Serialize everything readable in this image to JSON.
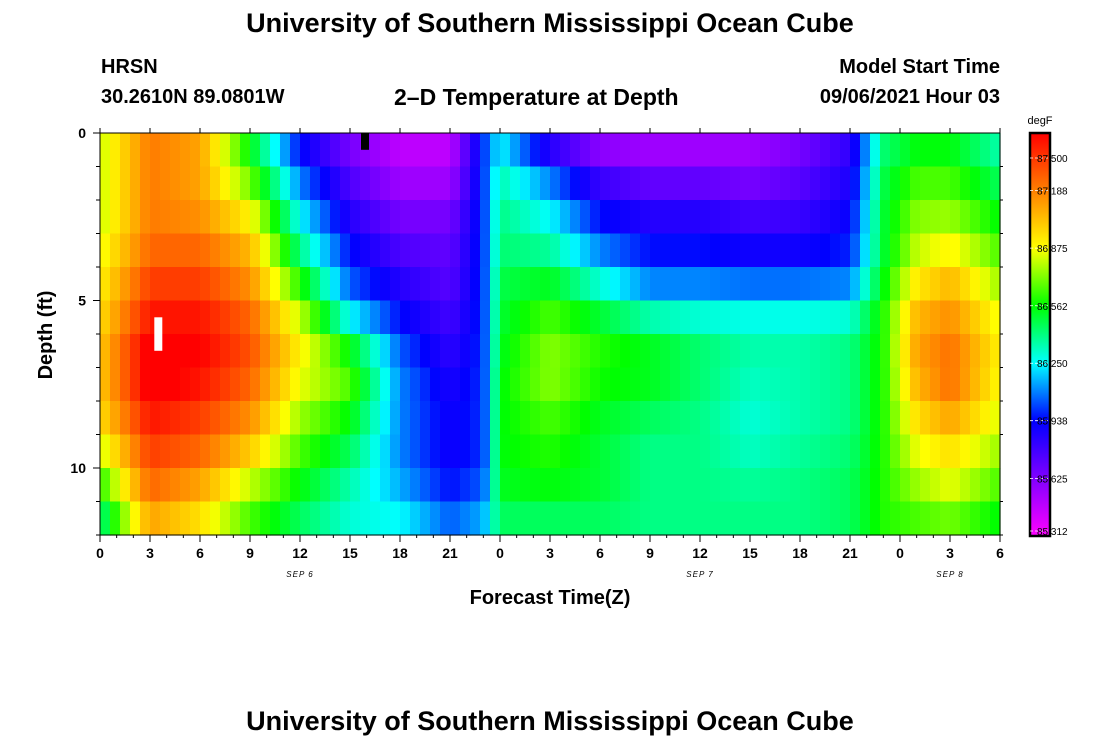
{
  "header": {
    "title": "University of Southern Mississippi Ocean Cube",
    "station": "HRSN",
    "coords": "30.2610N  89.0801W",
    "subtitle": "2–D Temperature at Depth",
    "model_start_label": "Model Start Time",
    "model_start_value": "09/06/2021 Hour 03"
  },
  "footer": {
    "title": "University of Southern Mississippi Ocean Cube"
  },
  "chart_data": {
    "type": "heatmap",
    "xlabel": "Forecast Time(Z)",
    "ylabel": "Depth (ft)",
    "x_ticks": [
      "0",
      "3",
      "6",
      "9",
      "12",
      "15",
      "18",
      "21",
      "0",
      "3",
      "6",
      "9",
      "12",
      "15",
      "18",
      "21",
      "0",
      "3",
      "6"
    ],
    "x_hours": [
      0,
      3,
      6,
      9,
      12,
      15,
      18,
      21,
      24,
      27,
      30,
      33,
      36,
      39,
      42,
      45,
      48,
      51,
      54
    ],
    "day_labels": [
      {
        "text": "SEP 6",
        "hour": 12
      },
      {
        "text": "SEP 7",
        "hour": 36
      },
      {
        "text": "SEP 8",
        "hour": 51
      }
    ],
    "y_ticks": [
      0,
      5,
      10
    ],
    "ylim": [
      0,
      12
    ],
    "xlim": [
      0,
      54
    ],
    "colorbar": {
      "unit": "degF",
      "min": 85.312,
      "max": 87.5,
      "ticks": [
        "87.500",
        "87.188",
        "86.875",
        "86.562",
        "86.250",
        "85.938",
        "85.625",
        "85.312"
      ],
      "colors": [
        "#ff00ff",
        "#8000ff",
        "#0000ff",
        "#00ffff",
        "#00ff00",
        "#ffff00",
        "#ff8000",
        "#ff0000"
      ]
    },
    "depth_levels_ft": [
      0,
      1,
      2,
      3,
      4,
      5,
      6,
      7,
      8,
      9,
      10,
      11,
      12
    ],
    "profiles": [
      {
        "hour": 0,
        "values": [
          86.8,
          86.8,
          86.8,
          86.8,
          86.9,
          86.9,
          87.0,
          87.0,
          87.0,
          86.9,
          86.7,
          86.5,
          86.3
        ]
      },
      {
        "hour": 3,
        "values": [
          87.2,
          87.2,
          87.2,
          87.2,
          87.3,
          87.4,
          87.5,
          87.6,
          87.5,
          87.4,
          87.3,
          87.2,
          87.0
        ]
      },
      {
        "hour": 6,
        "values": [
          87.1,
          87.1,
          87.1,
          87.2,
          87.3,
          87.4,
          87.5,
          87.5,
          87.4,
          87.3,
          87.2,
          87.0,
          86.9
        ]
      },
      {
        "hour": 9,
        "values": [
          86.5,
          86.6,
          86.8,
          87.0,
          87.1,
          87.2,
          87.3,
          87.3,
          87.2,
          87.1,
          86.9,
          86.7,
          86.6
        ]
      },
      {
        "hour": 12,
        "values": [
          85.9,
          86.0,
          86.2,
          86.3,
          86.5,
          86.7,
          86.9,
          86.9,
          86.8,
          86.7,
          86.6,
          86.5,
          86.4
        ]
      },
      {
        "hour": 15,
        "values": [
          85.6,
          85.7,
          85.8,
          85.9,
          86.0,
          86.1,
          86.4,
          86.7,
          86.6,
          86.5,
          86.4,
          86.3,
          86.3
        ]
      },
      {
        "hour": 18,
        "values": [
          85.45,
          85.5,
          85.6,
          85.7,
          85.8,
          85.9,
          86.0,
          86.1,
          86.1,
          86.1,
          86.1,
          86.2,
          86.3
        ]
      },
      {
        "hour": 21,
        "values": [
          85.45,
          85.5,
          85.6,
          85.7,
          85.7,
          85.75,
          85.8,
          85.85,
          85.9,
          85.9,
          85.9,
          86.0,
          86.1
        ]
      },
      {
        "hour": 23,
        "values": [
          86.0,
          86.0,
          86.0,
          86.0,
          86.0,
          86.0,
          86.0,
          86.0,
          86.0,
          86.0,
          86.0,
          86.1,
          86.2
        ]
      },
      {
        "hour": 24,
        "values": [
          86.2,
          86.3,
          86.4,
          86.4,
          86.45,
          86.5,
          86.5,
          86.55,
          86.55,
          86.55,
          86.55,
          86.5,
          86.4
        ]
      },
      {
        "hour": 27,
        "values": [
          85.7,
          86.0,
          86.2,
          86.3,
          86.45,
          86.6,
          86.7,
          86.75,
          86.7,
          86.6,
          86.6,
          86.5,
          86.4
        ]
      },
      {
        "hour": 30,
        "values": [
          85.5,
          85.7,
          85.9,
          86.0,
          86.2,
          86.4,
          86.6,
          86.6,
          86.55,
          86.5,
          86.5,
          86.5,
          86.4
        ]
      },
      {
        "hour": 33,
        "values": [
          85.5,
          85.6,
          85.8,
          85.9,
          86.0,
          86.2,
          86.5,
          86.55,
          86.5,
          86.4,
          86.4,
          86.4,
          86.4
        ]
      },
      {
        "hour": 36,
        "values": [
          85.5,
          85.6,
          85.8,
          85.9,
          86.0,
          86.2,
          86.4,
          86.45,
          86.4,
          86.4,
          86.4,
          86.4,
          86.4
        ]
      },
      {
        "hour": 39,
        "values": [
          85.5,
          85.6,
          85.7,
          85.85,
          85.95,
          86.2,
          86.35,
          86.35,
          86.3,
          86.3,
          86.35,
          86.4,
          86.4
        ]
      },
      {
        "hour": 42,
        "values": [
          85.6,
          85.7,
          85.75,
          85.85,
          85.95,
          86.2,
          86.35,
          86.35,
          86.35,
          86.35,
          86.4,
          86.4,
          86.4
        ]
      },
      {
        "hour": 45,
        "values": [
          85.8,
          85.85,
          85.9,
          85.95,
          86.0,
          86.2,
          86.4,
          86.4,
          86.4,
          86.4,
          86.45,
          86.45,
          86.45
        ]
      },
      {
        "hour": 47,
        "values": [
          86.4,
          86.45,
          86.5,
          86.5,
          86.5,
          86.6,
          86.6,
          86.6,
          86.6,
          86.6,
          86.6,
          86.6,
          86.6
        ]
      },
      {
        "hour": 49,
        "values": [
          86.5,
          86.6,
          86.7,
          86.75,
          86.85,
          87.0,
          87.1,
          87.1,
          87.0,
          86.9,
          86.8,
          86.7,
          86.6
        ]
      },
      {
        "hour": 51,
        "values": [
          86.5,
          86.6,
          86.7,
          86.8,
          87.0,
          87.1,
          87.2,
          87.25,
          87.2,
          87.0,
          86.9,
          86.8,
          86.6
        ]
      },
      {
        "hour": 54,
        "values": [
          86.3,
          86.4,
          86.5,
          86.6,
          86.7,
          86.8,
          86.9,
          86.9,
          86.85,
          86.8,
          86.7,
          86.6,
          86.5
        ]
      }
    ],
    "markers": [
      {
        "hour": 15.9,
        "depth_top": 0.0,
        "depth_bottom": 0.5,
        "color": "#000000"
      },
      {
        "hour": 3.5,
        "depth_top": 5.5,
        "depth_bottom": 6.5,
        "color": "#ffffff"
      }
    ]
  }
}
